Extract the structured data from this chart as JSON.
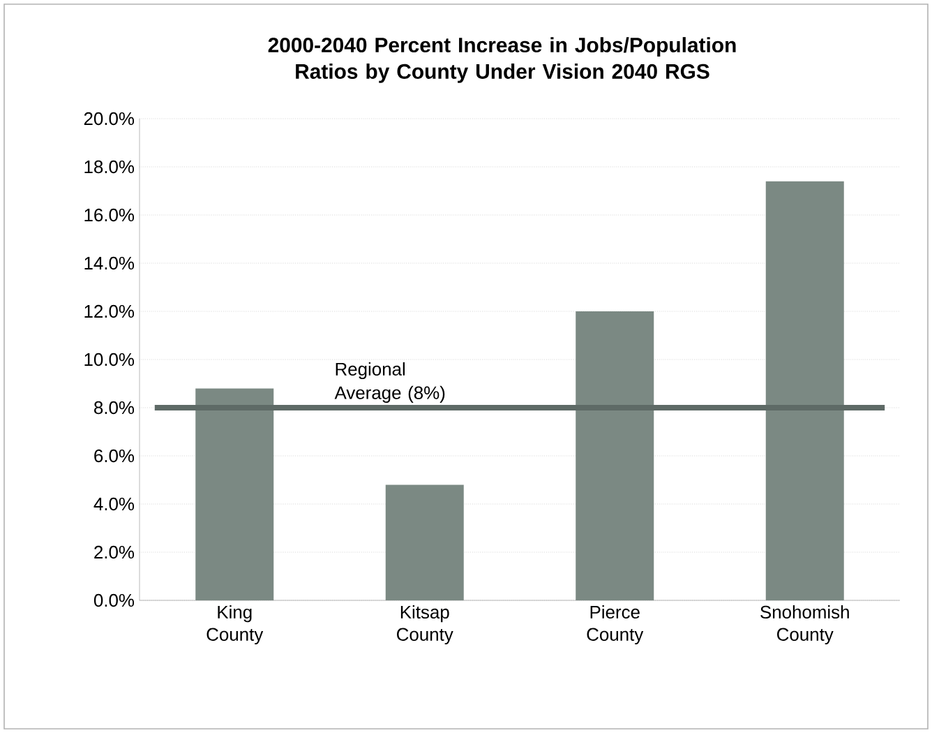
{
  "chart_data": {
    "type": "bar",
    "title": "2000-2040 Percent Increase in Jobs/Population Ratios by County Under Vision 2040 RGS",
    "categories": [
      "King County",
      "Kitsap County",
      "Pierce County",
      "Snohomish County"
    ],
    "values": [
      8.8,
      4.8,
      12.0,
      17.4
    ],
    "color": "#7b8983",
    "ylim": [
      0,
      20
    ],
    "yticks": [
      {
        "value": 0,
        "label": "0.0%"
      },
      {
        "value": 2,
        "label": "2.0%"
      },
      {
        "value": 4,
        "label": "4.0%"
      },
      {
        "value": 6,
        "label": "6.0%"
      },
      {
        "value": 8,
        "label": "8.0%"
      },
      {
        "value": 10,
        "label": "10.0%"
      },
      {
        "value": 12,
        "label": "12.0%"
      },
      {
        "value": 14,
        "label": "14.0%"
      },
      {
        "value": 16,
        "label": "16.0%"
      },
      {
        "value": 18,
        "label": "18.0%"
      },
      {
        "value": 20,
        "label": "20.0%"
      }
    ],
    "grid": "y",
    "ref_lines": [
      {
        "axis": "y",
        "value": 8,
        "label": "Regional Average (8%)",
        "color": "#5e6a66"
      }
    ]
  }
}
